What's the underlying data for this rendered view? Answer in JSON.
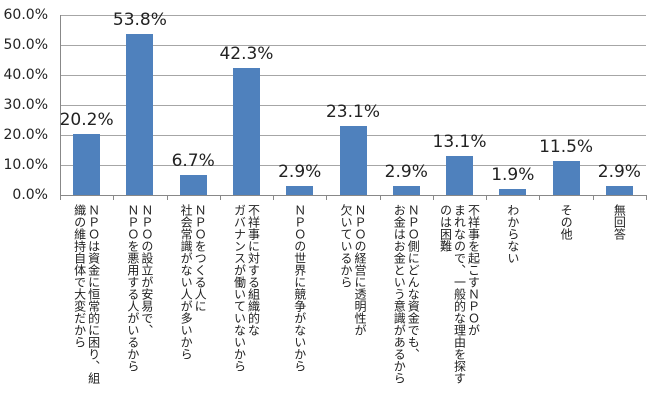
{
  "chart_data": {
    "type": "bar",
    "title": "",
    "xlabel": "",
    "ylabel": "",
    "ylim": [
      0,
      60
    ],
    "yticks": [
      "0.0%",
      "10.0%",
      "20.0%",
      "30.0%",
      "40.0%",
      "50.0%",
      "60.0%"
    ],
    "grid": true,
    "legend": null,
    "bar_color": "#4f81bd",
    "categories": [
      "ＮＰＯは資金に恒常的に困り、組織の維持自体で大変だから",
      "ＮＰＯの設立が安易で、ＮＰＯを悪用する人がいるから",
      "ＮＰＯをつくる人に社会常識がない人が多いから",
      "不祥事に対する組織的なガバナンスが働いていないから",
      "ＮＰＯの世界に競争がないから",
      "ＮＰＯの経営に透明性が欠いているから",
      "ＮＰＯ側にどんな資金でも、お金はお金という意識があるから",
      "不祥事を起こすＮＰＯがまれなので、一般的な理由を探すのは困難",
      "わからない",
      "その他",
      "無回答"
    ],
    "category_lines": [
      [
        "ＮＰＯは資金に恒常的に困り、組",
        "織の維持自体で大変だから"
      ],
      [
        "ＮＰＯの設立が安易で、",
        "ＮＰＯを悪用する人がいるから"
      ],
      [
        "ＮＰＯをつくる人に",
        "社会常識がない人が多いから"
      ],
      [
        "不祥事に対する組織的な",
        "ガバナンスが働いていないから"
      ],
      [
        "ＮＰＯの世界に競争がないから"
      ],
      [
        "ＮＰＯの経営に透明性が",
        "欠いているから"
      ],
      [
        "ＮＰＯ側にどんな資金でも、",
        "お金はお金という意識があるから"
      ],
      [
        "不祥事を起こすＮＰＯが",
        "まれなので、一般的な理由を探す",
        "のは困難"
      ],
      [
        "わからない"
      ],
      [
        "その他"
      ],
      [
        "無回答"
      ]
    ],
    "values": [
      20.2,
      53.8,
      6.7,
      42.3,
      2.9,
      23.1,
      2.9,
      13.1,
      1.9,
      11.5,
      2.9
    ],
    "value_labels": [
      "20.2%",
      "53.8%",
      "6.7%",
      "42.3%",
      "2.9%",
      "23.1%",
      "2.9%",
      "13.1%",
      "1.9%",
      "11.5%",
      "2.9%"
    ]
  }
}
